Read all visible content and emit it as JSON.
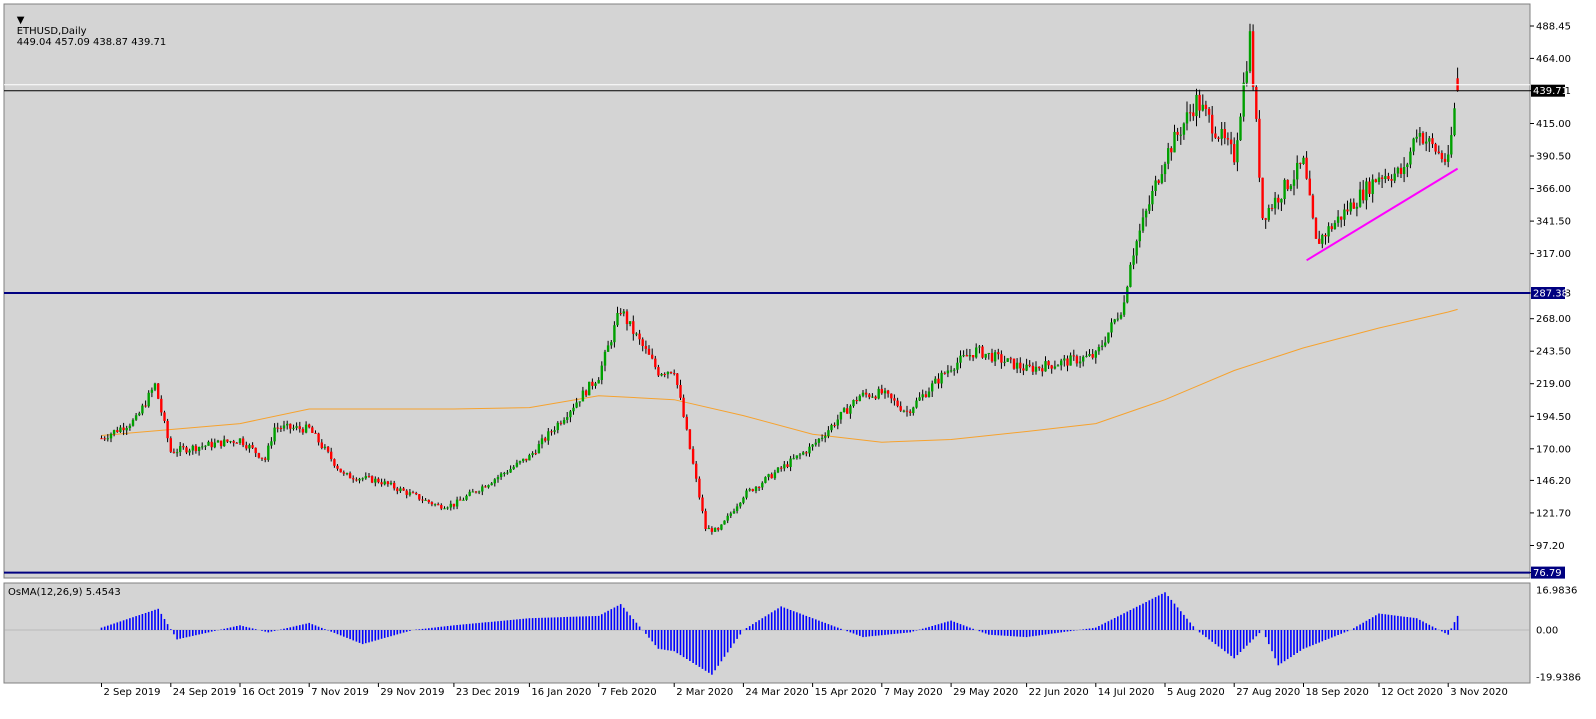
{
  "header": {
    "symbol": "ETHUSD,Daily",
    "ohlc": "449.04 457.09 438.87 439.71"
  },
  "osma_header": "OsMA(12,26,9) 5.4543",
  "colors": {
    "background": "#d4d4d4",
    "bull": "#00a000",
    "bear": "#ff0000",
    "wick": "#000000",
    "ma": "#f6a22e",
    "trendline": "#ff00ff",
    "hline": "#000080",
    "histogram": "#0000ff"
  },
  "price_scale": {
    "ticks": [
      "488.45",
      "464.00",
      "439.71",
      "415.00",
      "390.50",
      "366.00",
      "341.50",
      "317.00",
      "287.38",
      "268.00",
      "243.50",
      "219.00",
      "194.50",
      "170.00",
      "146.20",
      "121.70",
      "97.20",
      "76.79"
    ],
    "ylim": [
      72.7,
      505
    ]
  },
  "osma_scale": {
    "ticks": [
      "16.9836",
      "0.00",
      "-19.9386"
    ],
    "ylim": [
      -19.9386,
      16.9836
    ]
  },
  "price_labels": {
    "current": "439.71",
    "resistance": "287.38",
    "support": "76.79"
  },
  "dates": [
    "2 Sep 2019",
    "24 Sep 2019",
    "16 Oct 2019",
    "7 Nov 2019",
    "29 Nov 2019",
    "23 Dec 2019",
    "16 Jan 2020",
    "7 Feb 2020",
    "2 Mar 2020",
    "24 Mar 2020",
    "15 Apr 2020",
    "7 May 2020",
    "29 May 2020",
    "22 Jun 2020",
    "14 Jul 2020",
    "5 Aug 2020",
    "27 Aug 2020",
    "18 Sep 2020",
    "12 Oct 2020",
    "3 Nov 2020"
  ],
  "chart_data": {
    "type": "candlestick",
    "symbol": "ETHUSD",
    "timeframe": "Daily",
    "last_bar": {
      "open": 449.04,
      "high": 457.09,
      "low": 438.87,
      "close": 439.71
    },
    "horizontal_lines": [
      439.71,
      287.38,
      76.79
    ],
    "moving_average": [
      {
        "date": "2 Sep 2019",
        "value": 180
      },
      {
        "date": "16 Oct 2019",
        "value": 189
      },
      {
        "date": "7 Nov 2019",
        "value": 200
      },
      {
        "date": "23 Dec 2019",
        "value": 200
      },
      {
        "date": "16 Jan 2020",
        "value": 201
      },
      {
        "date": "7 Feb 2020",
        "value": 210
      },
      {
        "date": "2 Mar 2020",
        "value": 207
      },
      {
        "date": "24 Mar 2020",
        "value": 195
      },
      {
        "date": "15 Apr 2020",
        "value": 181
      },
      {
        "date": "7 May 2020",
        "value": 175
      },
      {
        "date": "29 May 2020",
        "value": 177
      },
      {
        "date": "22 Jun 2020",
        "value": 183
      },
      {
        "date": "14 Jul 2020",
        "value": 189
      },
      {
        "date": "5 Aug 2020",
        "value": 207
      },
      {
        "date": "27 Aug 2020",
        "value": 229
      },
      {
        "date": "18 Sep 2020",
        "value": 246
      },
      {
        "date": "12 Oct 2020",
        "value": 261
      },
      {
        "date": "3 Nov 2020",
        "value": 273
      },
      {
        "date": "6 Nov 2020",
        "value": 275
      }
    ],
    "trendline": [
      {
        "date": "19 Sep 2020",
        "value": 312
      },
      {
        "date": "6 Nov 2020",
        "value": 381
      }
    ],
    "price_path": [
      {
        "date": "2 Sep 2019",
        "value": 178
      },
      {
        "date": "13 Sep 2019",
        "value": 192
      },
      {
        "date": "19 Sep 2019",
        "value": 218
      },
      {
        "date": "24 Sep 2019",
        "value": 168
      },
      {
        "date": "16 Oct 2019",
        "value": 177
      },
      {
        "date": "24 Oct 2019",
        "value": 162
      },
      {
        "date": "27 Oct 2019",
        "value": 186
      },
      {
        "date": "7 Nov 2019",
        "value": 185
      },
      {
        "date": "18 Nov 2019",
        "value": 150
      },
      {
        "date": "29 Nov 2019",
        "value": 146
      },
      {
        "date": "18 Dec 2019",
        "value": 127
      },
      {
        "date": "23 Dec 2019",
        "value": 128
      },
      {
        "date": "16 Jan 2020",
        "value": 164
      },
      {
        "date": "7 Feb 2020",
        "value": 225
      },
      {
        "date": "14 Feb 2020",
        "value": 275
      },
      {
        "date": "17 Feb 2020",
        "value": 262
      },
      {
        "date": "26 Feb 2020",
        "value": 228
      },
      {
        "date": "2 Mar 2020",
        "value": 230
      },
      {
        "date": "12 Mar 2020",
        "value": 110
      },
      {
        "date": "16 Mar 2020",
        "value": 108
      },
      {
        "date": "24 Mar 2020",
        "value": 135
      },
      {
        "date": "15 Apr 2020",
        "value": 172
      },
      {
        "date": "30 Apr 2020",
        "value": 210
      },
      {
        "date": "7 May 2020",
        "value": 212
      },
      {
        "date": "15 May 2020",
        "value": 198
      },
      {
        "date": "29 May 2020",
        "value": 232
      },
      {
        "date": "6 Jun 2020",
        "value": 244
      },
      {
        "date": "22 Jun 2020",
        "value": 230
      },
      {
        "date": "14 Jul 2020",
        "value": 240
      },
      {
        "date": "23 Jul 2020",
        "value": 280
      },
      {
        "date": "25 Jul 2020",
        "value": 312
      },
      {
        "date": "5 Aug 2020",
        "value": 390
      },
      {
        "date": "15 Aug 2020",
        "value": 432
      },
      {
        "date": "27 Aug 2020",
        "value": 390
      },
      {
        "date": "1 Sep 2020",
        "value": 480
      },
      {
        "date": "5 Sep 2020",
        "value": 345
      },
      {
        "date": "18 Sep 2020",
        "value": 385
      },
      {
        "date": "22 Sep 2020",
        "value": 325
      },
      {
        "date": "12 Oct 2020",
        "value": 376
      },
      {
        "date": "20 Oct 2020",
        "value": 378
      },
      {
        "date": "24 Oct 2020",
        "value": 410
      },
      {
        "date": "3 Nov 2020",
        "value": 385
      },
      {
        "date": "5 Nov 2020",
        "value": 425
      },
      {
        "date": "6 Nov 2020",
        "value": 440
      }
    ],
    "osma": [
      {
        "date": "2 Sep 2019",
        "value": 1
      },
      {
        "date": "20 Sep 2019",
        "value": 9
      },
      {
        "date": "26 Sep 2019",
        "value": -4
      },
      {
        "date": "16 Oct 2019",
        "value": 2
      },
      {
        "date": "25 Oct 2019",
        "value": -1
      },
      {
        "date": "7 Nov 2019",
        "value": 3
      },
      {
        "date": "24 Nov 2019",
        "value": -6
      },
      {
        "date": "10 Dec 2019",
        "value": 0
      },
      {
        "date": "23 Dec 2019",
        "value": 2
      },
      {
        "date": "16 Jan 2020",
        "value": 5
      },
      {
        "date": "7 Feb 2020",
        "value": 6
      },
      {
        "date": "14 Feb 2020",
        "value": 11
      },
      {
        "date": "26 Feb 2020",
        "value": -8
      },
      {
        "date": "2 Mar 2020",
        "value": -9
      },
      {
        "date": "14 Mar 2020",
        "value": -19
      },
      {
        "date": "24 Mar 2020",
        "value": 0
      },
      {
        "date": "5 Apr 2020",
        "value": 10
      },
      {
        "date": "15 Apr 2020",
        "value": 5
      },
      {
        "date": "1 May 2020",
        "value": -3
      },
      {
        "date": "16 May 2020",
        "value": -1
      },
      {
        "date": "29 May 2020",
        "value": 4
      },
      {
        "date": "10 Jun 2020",
        "value": -2
      },
      {
        "date": "22 Jun 2020",
        "value": -3
      },
      {
        "date": "14 Jul 2020",
        "value": 1
      },
      {
        "date": "5 Aug 2020",
        "value": 16
      },
      {
        "date": "15 Aug 2020",
        "value": 0
      },
      {
        "date": "27 Aug 2020",
        "value": -12
      },
      {
        "date": "5 Sep 2020",
        "value": 0
      },
      {
        "date": "10 Sep 2020",
        "value": -15
      },
      {
        "date": "18 Sep 2020",
        "value": -8
      },
      {
        "date": "3 Oct 2020",
        "value": 0
      },
      {
        "date": "12 Oct 2020",
        "value": 7
      },
      {
        "date": "24 Oct 2020",
        "value": 5
      },
      {
        "date": "3 Nov 2020",
        "value": -2
      },
      {
        "date": "6 Nov 2020",
        "value": 6
      }
    ]
  }
}
